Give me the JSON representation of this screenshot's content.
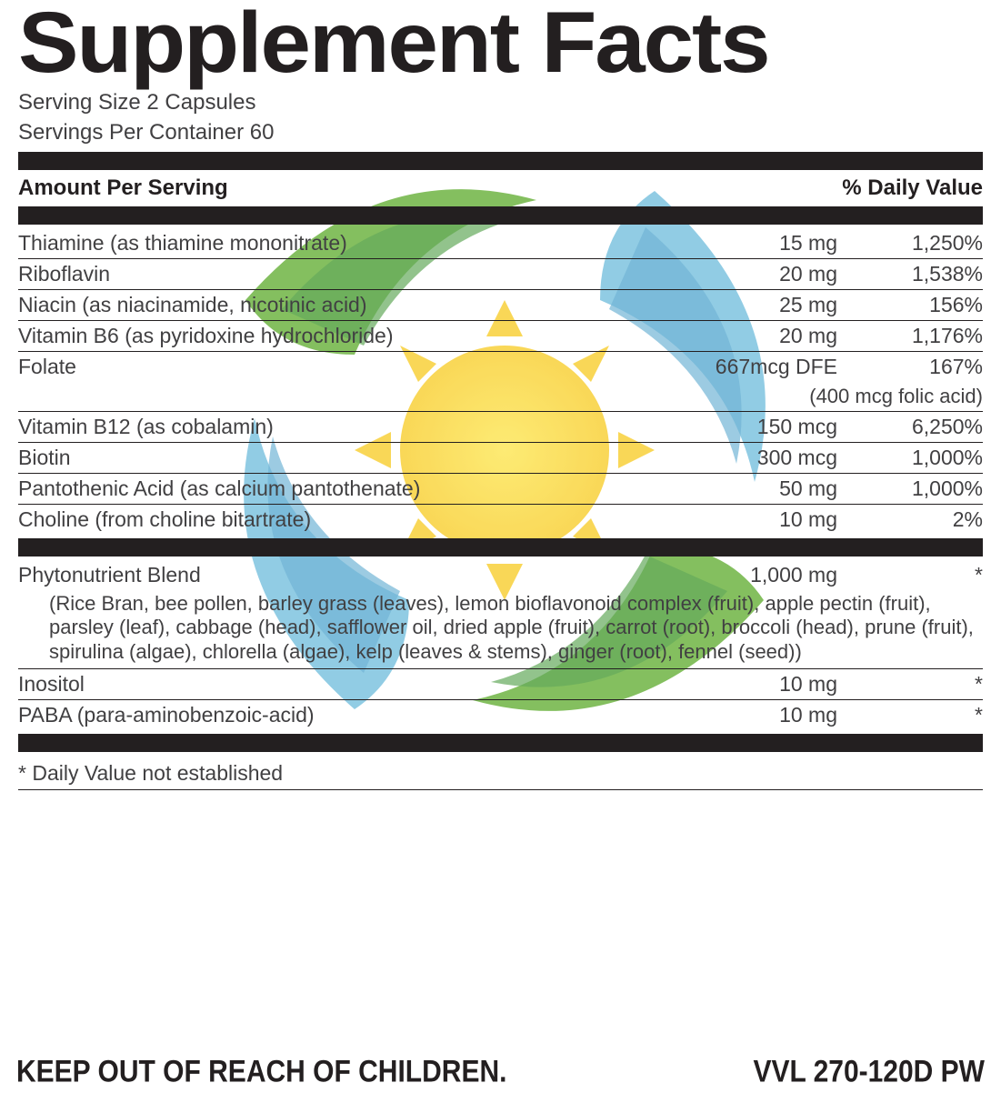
{
  "title": "Supplement Facts",
  "serving_size": "Serving Size 2 Capsules",
  "servings_per_container": "Servings Per Container 60",
  "header_left": "Amount Per Serving",
  "header_right": "% Daily Value",
  "rows_a": [
    {
      "name": "Thiamine (as thiamine mononitrate)",
      "amt": "15 mg",
      "dv": "1,250%"
    },
    {
      "name": "Riboflavin",
      "amt": "20 mg",
      "dv": "1,538%"
    },
    {
      "name": "Niacin (as niacinamide, nicotinic acid)",
      "amt": "25 mg",
      "dv": "156%"
    },
    {
      "name": "Vitamin B6 (as pyridoxine hydrochloride)",
      "amt": "20 mg",
      "dv": "1,176%"
    }
  ],
  "folate": {
    "name": "Folate",
    "amt": "667mcg DFE",
    "dv": "167%",
    "sub": "(400 mcg folic acid)"
  },
  "rows_b": [
    {
      "name": "Vitamin B12 (as cobalamin)",
      "amt": "150 mcg",
      "dv": "6,250%"
    },
    {
      "name": "Biotin",
      "amt": "300 mcg",
      "dv": "1,000%"
    },
    {
      "name": "Pantothenic Acid (as calcium pantothenate)",
      "amt": "50 mg",
      "dv": "1,000%"
    },
    {
      "name": "Choline (from choline bitartrate)",
      "amt": "10 mg",
      "dv": "2%"
    }
  ],
  "blend": {
    "name": "Phytonutrient Blend",
    "amt": "1,000 mg",
    "dv": "*"
  },
  "blend_desc": "(Rice Bran, bee pollen, barley grass (leaves), lemon bioflavonoid complex (fruit), apple pectin (fruit), parsley (leaf), cabbage (head), safflower oil, dried apple (fruit), carrot (root), broccoli (head), prune (fruit), spirulina (algae), chlorella (algae), kelp (leaves & stems), ginger (root), fennel (seed))",
  "rows_c": [
    {
      "name": "Inositol",
      "amt": "10 mg",
      "dv": "*"
    },
    {
      "name": "PABA (para-aminobenzoic-acid)",
      "amt": "10 mg",
      "dv": "*"
    }
  ],
  "footnote": "* Daily Value not established",
  "warning": "KEEP OUT OF REACH OF CHILDREN.",
  "code": "VVL 270-120D PW",
  "logo_colors": {
    "green1": "#6fb544",
    "green2": "#4a9b3e",
    "blue1": "#7ec4e0",
    "blue2": "#5aa8cf",
    "yellow1": "#fde85c",
    "yellow2": "#f9d13a",
    "orange": "#f5a623"
  }
}
